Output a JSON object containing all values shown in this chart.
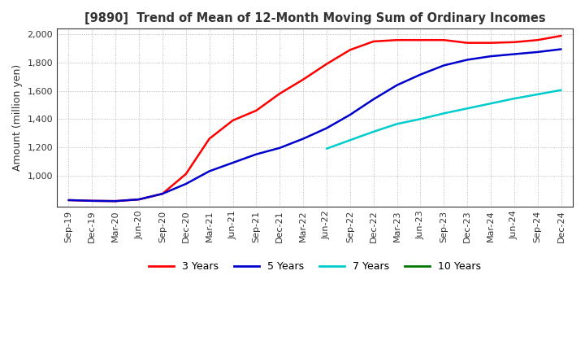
{
  "title": "[9890]  Trend of Mean of 12-Month Moving Sum of Ordinary Incomes",
  "ylabel": "Amount (million yen)",
  "background_color": "#ffffff",
  "grid_color": "#aaaaaa",
  "ylim": [
    780,
    2040
  ],
  "yticks": [
    1000,
    1200,
    1400,
    1600,
    1800,
    2000
  ],
  "x_labels": [
    "Sep-19",
    "Dec-19",
    "Mar-20",
    "Jun-20",
    "Sep-20",
    "Dec-20",
    "Mar-21",
    "Jun-21",
    "Sep-21",
    "Dec-21",
    "Mar-22",
    "Jun-22",
    "Sep-22",
    "Dec-22",
    "Mar-23",
    "Jun-23",
    "Sep-23",
    "Dec-23",
    "Mar-24",
    "Jun-24",
    "Sep-24",
    "Dec-24"
  ],
  "series": {
    "3 Years": {
      "color": "#ff0000",
      "values": [
        825,
        820,
        818,
        830,
        870,
        1010,
        1260,
        1390,
        1460,
        1580,
        1680,
        1790,
        1890,
        1950,
        1960,
        1960,
        1960,
        1940,
        1940,
        1945,
        1960,
        1990
      ]
    },
    "5 Years": {
      "color": "#0000cc",
      "values": [
        825,
        820,
        818,
        830,
        870,
        940,
        1030,
        1090,
        1150,
        1195,
        1260,
        1335,
        1430,
        1540,
        1640,
        1715,
        1780,
        1820,
        1845,
        1860,
        1875,
        1895
      ]
    },
    "7 Years": {
      "color": "#00cccc",
      "values": [
        null,
        null,
        null,
        null,
        null,
        null,
        null,
        null,
        null,
        null,
        null,
        1190,
        1250,
        1310,
        1365,
        1400,
        1440,
        1475,
        1510,
        1545,
        1575,
        1605
      ]
    },
    "10 Years": {
      "color": "#007700",
      "values": [
        null,
        null,
        null,
        null,
        null,
        null,
        null,
        null,
        null,
        null,
        null,
        null,
        null,
        null,
        null,
        null,
        null,
        null,
        null,
        null,
        null,
        null
      ]
    }
  },
  "legend": {
    "labels": [
      "3 Years",
      "5 Years",
      "7 Years",
      "10 Years"
    ],
    "colors": [
      "#ff0000",
      "#0000cc",
      "#00cccc",
      "#007700"
    ]
  }
}
